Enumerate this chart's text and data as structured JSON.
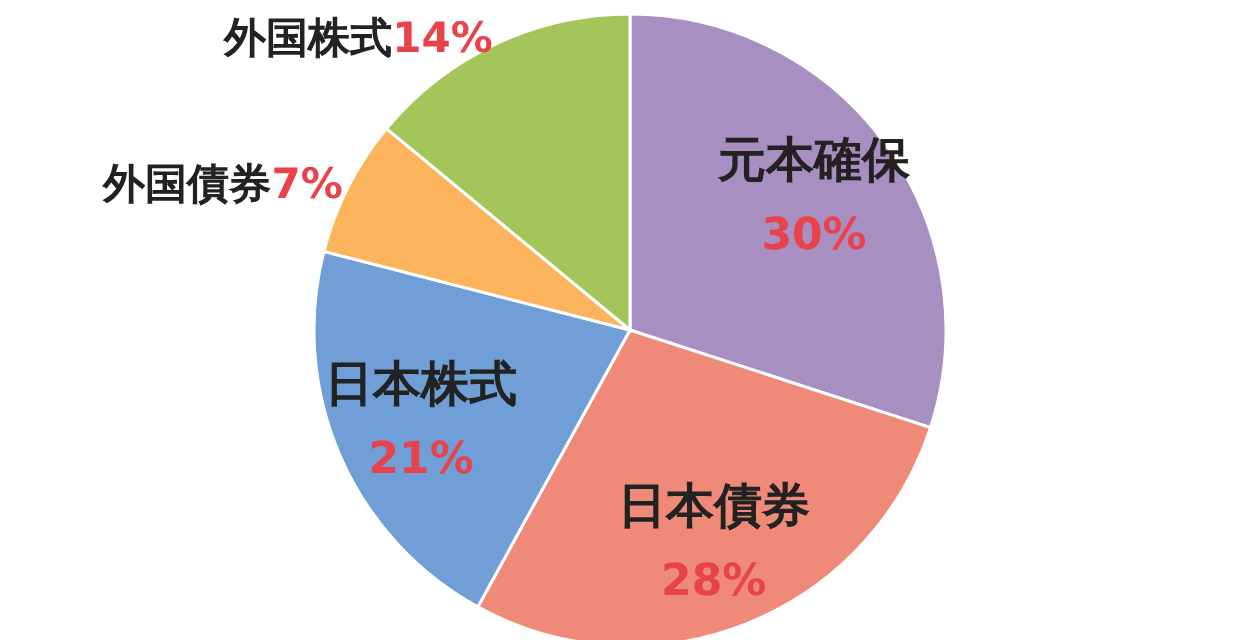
{
  "chart_data": {
    "type": "pie",
    "categories": [
      "元本確保",
      "日本債券",
      "日本株式",
      "外国債券",
      "外国株式"
    ],
    "values": [
      30,
      28,
      21,
      7,
      14
    ],
    "value_labels": [
      "30%",
      "28%",
      "21%",
      "7%",
      "14%"
    ],
    "colors": [
      "#a78fc1",
      "#ef8a78",
      "#6f9fd6",
      "#fbb45c",
      "#a3c55a"
    ]
  }
}
